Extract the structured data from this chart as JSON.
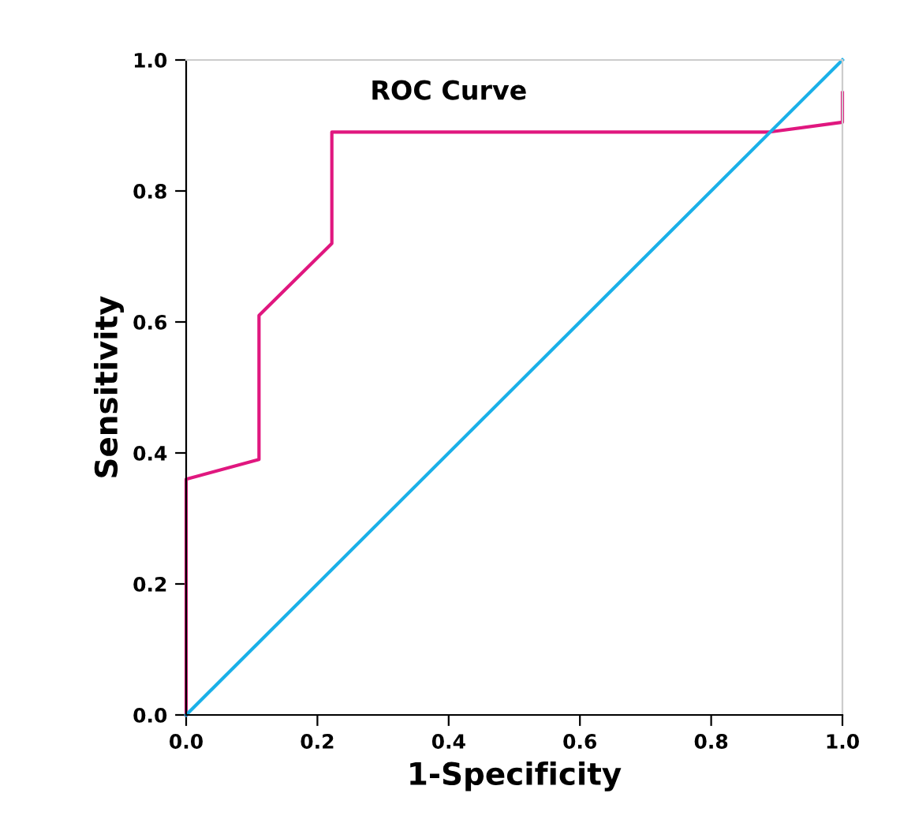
{
  "chart_data": {
    "type": "line",
    "title": "ROC Curve",
    "xlabel": "1-Specificity",
    "ylabel": "Sensitivity",
    "series": [
      {
        "x": [
          0,
          0,
          0.111,
          0.111,
          0.222,
          0.222,
          0.889,
          1.0,
          1.0
        ],
        "values": [
          0,
          0.36,
          0.39,
          0.61,
          0.72,
          0.89,
          0.89,
          0.905,
          0.95
        ],
        "color": "#e0177f"
      },
      {
        "x": [
          0,
          1.0
        ],
        "values": [
          0,
          1.0
        ],
        "color": "#1ab0e8"
      }
    ],
    "xlim": [
      0,
      1.0
    ],
    "ylim": [
      0,
      1.0
    ],
    "xticks": [
      {
        "value": 0,
        "label": "0.0"
      },
      {
        "value": 0.2,
        "label": "0.2"
      },
      {
        "value": 0.4,
        "label": "0.4"
      },
      {
        "value": 0.6,
        "label": "0.6"
      },
      {
        "value": 0.8,
        "label": "0.8"
      },
      {
        "value": 1.0,
        "label": "1.0"
      }
    ],
    "yticks": [
      {
        "value": 0,
        "label": "0.0"
      },
      {
        "value": 0.2,
        "label": "0.2"
      },
      {
        "value": 0.4,
        "label": "0.4"
      },
      {
        "value": 0.6,
        "label": "0.6"
      },
      {
        "value": 0.8,
        "label": "0.8"
      },
      {
        "value": 1.0,
        "label": "1.0"
      }
    ],
    "grid": false,
    "legend": false,
    "marker": "none",
    "line_style": "solid"
  }
}
